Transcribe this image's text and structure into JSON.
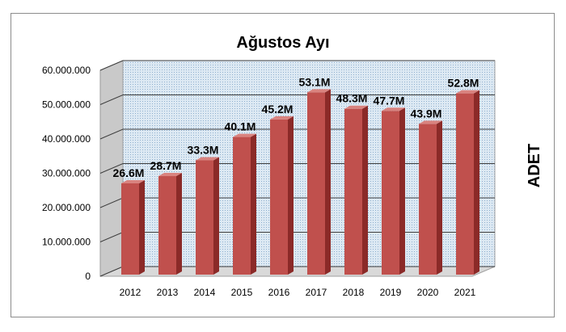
{
  "chart_data": {
    "type": "bar",
    "title": "Ağustos Ayı",
    "ylabel": "ADET",
    "xlabel": "",
    "categories": [
      "2012",
      "2013",
      "2014",
      "2015",
      "2016",
      "2017",
      "2018",
      "2019",
      "2020",
      "2021"
    ],
    "values": [
      26600000,
      28700000,
      33300000,
      40100000,
      45200000,
      53100000,
      48300000,
      47700000,
      43900000,
      52800000
    ],
    "data_labels": [
      "26.6M",
      "28.7M",
      "33.3M",
      "40.1M",
      "45.2M",
      "53.1M",
      "48.3M",
      "47.7M",
      "43.9M",
      "52.8M"
    ],
    "ylim": [
      0,
      60000000
    ],
    "yticks": [
      0,
      10000000,
      20000000,
      30000000,
      40000000,
      50000000,
      60000000
    ],
    "ytick_labels": [
      "0",
      "10.000.000",
      "20.000.000",
      "30.000.000",
      "40.000.000",
      "50.000.000",
      "60.000.000"
    ],
    "grid": true,
    "legend": "none",
    "colors": {
      "bar_front": "#c0504d",
      "bar_side": "#8b2a28",
      "bar_top": "#d9837f",
      "wall": "#dde9f3",
      "wall_dots": "#8fb0cf",
      "floor": "#d9d9d9",
      "gridline": "#3c3c3c"
    }
  }
}
